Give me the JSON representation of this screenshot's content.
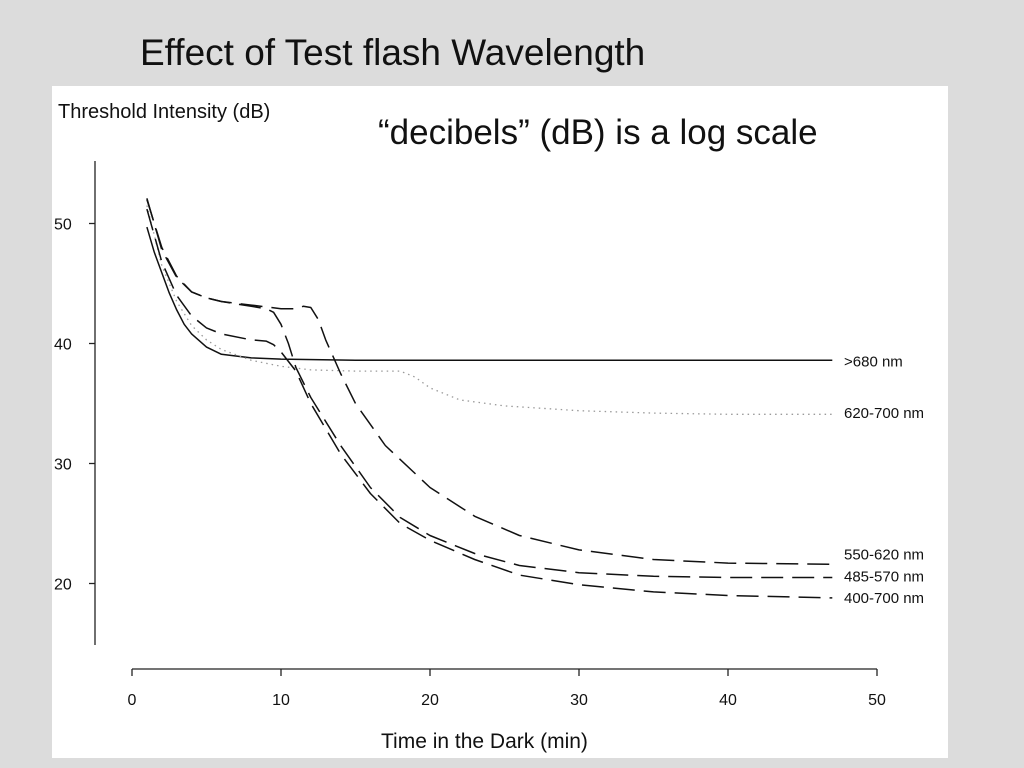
{
  "slide": {
    "title": "Effect of Test flash Wavelength",
    "annotation": "“decibels” (dB) is a log scale"
  },
  "chart_data": {
    "type": "line",
    "ylabel": "Threshold Intensity (dB)",
    "xlabel": "Time in the Dark (min)",
    "xlim": [
      0,
      50
    ],
    "ylim": [
      15,
      55
    ],
    "x_ticks": [
      0,
      10,
      20,
      30,
      40,
      50
    ],
    "y_ticks": [
      20,
      30,
      40,
      50
    ],
    "grid": false,
    "legend": "labels at right end of each curve",
    "series": [
      {
        "name": ">680 nm",
        "style": "solid",
        "points": [
          [
            1,
            49.7
          ],
          [
            1.5,
            47.6
          ],
          [
            2,
            45.9
          ],
          [
            2.5,
            44.2
          ],
          [
            3,
            42.8
          ],
          [
            3.5,
            41.6
          ],
          [
            4,
            40.8
          ],
          [
            5,
            39.7
          ],
          [
            6,
            39.1
          ],
          [
            8,
            38.8
          ],
          [
            10,
            38.7
          ],
          [
            15,
            38.6
          ],
          [
            20,
            38.6
          ],
          [
            30,
            38.6
          ],
          [
            40,
            38.6
          ],
          [
            47,
            38.6
          ]
        ]
      },
      {
        "name": "620-700 nm",
        "style": "dotted",
        "points": [
          [
            1,
            51.5
          ],
          [
            2,
            46.5
          ],
          [
            3,
            43.5
          ],
          [
            4,
            41.5
          ],
          [
            5,
            40.3
          ],
          [
            6,
            39.5
          ],
          [
            8,
            38.6
          ],
          [
            10,
            38.1
          ],
          [
            12,
            37.8
          ],
          [
            15,
            37.7
          ],
          [
            18,
            37.7
          ],
          [
            19,
            37.2
          ],
          [
            20,
            36.3
          ],
          [
            22,
            35.3
          ],
          [
            25,
            34.8
          ],
          [
            30,
            34.4
          ],
          [
            35,
            34.2
          ],
          [
            40,
            34.1
          ],
          [
            47,
            34.1
          ]
        ]
      },
      {
        "name": "550-620 nm",
        "style": "long-dash",
        "points": [
          [
            1,
            52
          ],
          [
            2,
            48
          ],
          [
            3,
            45.6
          ],
          [
            4,
            44.3
          ],
          [
            5,
            43.8
          ],
          [
            6,
            43.5
          ],
          [
            8,
            43.2
          ],
          [
            10,
            42.9
          ],
          [
            11,
            42.9
          ],
          [
            11.5,
            43.1
          ],
          [
            12,
            43
          ],
          [
            12.5,
            42
          ],
          [
            13,
            40.3
          ],
          [
            14,
            37.5
          ],
          [
            15,
            35
          ],
          [
            17,
            31.5
          ],
          [
            20,
            28
          ],
          [
            23,
            25.6
          ],
          [
            26,
            24
          ],
          [
            30,
            22.8
          ],
          [
            35,
            22
          ],
          [
            40,
            21.7
          ],
          [
            47,
            21.6
          ]
        ]
      },
      {
        "name": "485-570 nm",
        "style": "long-dash",
        "points": [
          [
            1,
            52.1
          ],
          [
            2,
            47.8
          ],
          [
            3,
            45.5
          ],
          [
            4,
            44.3
          ],
          [
            5,
            43.8
          ],
          [
            6,
            43.5
          ],
          [
            8,
            43.1
          ],
          [
            9,
            42.9
          ],
          [
            9.5,
            42.6
          ],
          [
            10,
            41.6
          ],
          [
            10.5,
            40
          ],
          [
            11,
            38
          ],
          [
            12,
            35.5
          ],
          [
            14,
            31.5
          ],
          [
            16,
            28
          ],
          [
            18,
            25.5
          ],
          [
            20,
            24
          ],
          [
            23,
            22.5
          ],
          [
            26,
            21.5
          ],
          [
            30,
            20.9
          ],
          [
            35,
            20.6
          ],
          [
            40,
            20.5
          ],
          [
            47,
            20.5
          ]
        ]
      },
      {
        "name": "400-700 nm",
        "style": "long-dash",
        "points": [
          [
            1,
            51.2
          ],
          [
            2,
            46.8
          ],
          [
            3,
            44
          ],
          [
            4,
            42.3
          ],
          [
            5,
            41.3
          ],
          [
            6,
            40.8
          ],
          [
            8,
            40.3
          ],
          [
            9,
            40.2
          ],
          [
            9.5,
            39.9
          ],
          [
            10,
            39.3
          ],
          [
            11,
            37.7
          ],
          [
            12,
            35
          ],
          [
            14,
            30.8
          ],
          [
            16,
            27.5
          ],
          [
            18,
            25
          ],
          [
            20,
            23.6
          ],
          [
            23,
            22
          ],
          [
            26,
            20.7
          ],
          [
            30,
            19.9
          ],
          [
            35,
            19.3
          ],
          [
            40,
            19
          ],
          [
            47,
            18.8
          ]
        ]
      }
    ],
    "label_y": [
      38.5,
      34.2,
      22.4,
      20.6,
      18.8
    ]
  }
}
